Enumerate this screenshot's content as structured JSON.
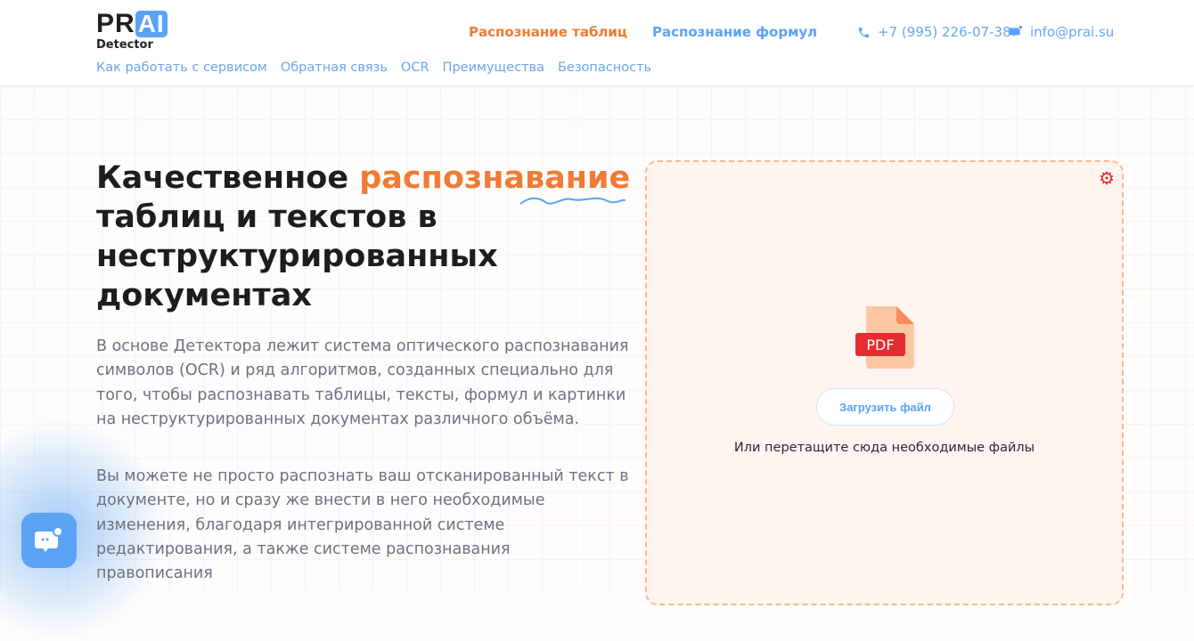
{
  "header": {
    "logo": {
      "pr": "PR",
      "ai": "AI",
      "sub": "Detector"
    },
    "nav": [
      {
        "label": "Распознание таблиц",
        "color": "#f07b34"
      },
      {
        "label": "Распознание формул",
        "color": "#5aa3f5"
      }
    ],
    "phone": "+7 (995) 226-07-38",
    "email": "info@prai.su",
    "subnav": [
      "Как работать с сервисом",
      "Обратная связь",
      "OCR",
      "Преимущества",
      "Безопасность"
    ]
  },
  "hero": {
    "title_start": "Качественное ",
    "title_highlight": "распознавание",
    "title_rest": "таблиц и текстов в неструктурированных документах",
    "paragraph1": "В основе Детектора лежит система оптического распознавания символов (OCR) и ряд алгоритмов, созданных специально для того, чтобы распознавать таблицы, тексты, формул и картинки на неструктурированных документах различного объёма.",
    "paragraph2": "Вы можете не просто распознать ваш отсканированный текст в документе, но и сразу же внести в него необходимые изменения, благодаря интегрированной системе редактирования, а также системе распознавания правописания"
  },
  "upload": {
    "file_badge": "PDF",
    "button": "Загрузить файл",
    "hint": "Или перетащите сюда необходимые файлы"
  },
  "colors": {
    "accent": "#f07b34",
    "brand": "#5aa3f5"
  }
}
